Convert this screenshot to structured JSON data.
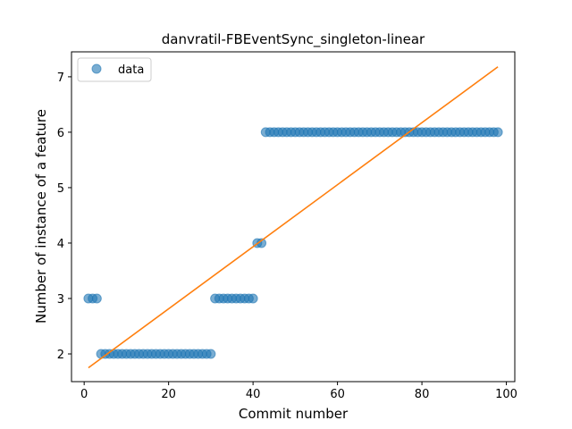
{
  "chart_data": {
    "type": "scatter",
    "title": "danvratil-FBEventSync_singleton-linear",
    "xlabel": "Commit number",
    "ylabel": "Number of instance of a feature",
    "xlim": [
      -3,
      102
    ],
    "ylim": [
      1.5,
      7.45
    ],
    "x_ticks": [
      0,
      20,
      40,
      60,
      80,
      100
    ],
    "y_ticks": [
      2,
      3,
      4,
      5,
      6,
      7
    ],
    "grid": false,
    "legend_position": "top-left",
    "colors": {
      "data": "#1f77b4",
      "fit": "#ff7f0e"
    },
    "series": [
      {
        "name": "data",
        "kind": "points",
        "x": [
          1,
          2,
          3,
          4,
          5,
          6,
          7,
          8,
          9,
          10,
          11,
          12,
          13,
          14,
          15,
          16,
          17,
          18,
          19,
          20,
          21,
          22,
          23,
          24,
          25,
          26,
          27,
          28,
          29,
          30,
          31,
          32,
          33,
          34,
          35,
          36,
          37,
          38,
          39,
          40,
          41,
          42,
          43,
          44,
          45,
          46,
          47,
          48,
          49,
          50,
          51,
          52,
          53,
          54,
          55,
          56,
          57,
          58,
          59,
          60,
          61,
          62,
          63,
          64,
          65,
          66,
          67,
          68,
          69,
          70,
          71,
          72,
          73,
          74,
          75,
          76,
          77,
          78,
          79,
          80,
          81,
          82,
          83,
          84,
          85,
          86,
          87,
          88,
          89,
          90,
          91,
          92,
          93,
          94,
          95,
          96,
          97,
          98
        ],
        "y": [
          3,
          3,
          3,
          2,
          2,
          2,
          2,
          2,
          2,
          2,
          2,
          2,
          2,
          2,
          2,
          2,
          2,
          2,
          2,
          2,
          2,
          2,
          2,
          2,
          2,
          2,
          2,
          2,
          2,
          2,
          3,
          3,
          3,
          3,
          3,
          3,
          3,
          3,
          3,
          3,
          4,
          4,
          6,
          6,
          6,
          6,
          6,
          6,
          6,
          6,
          6,
          6,
          6,
          6,
          6,
          6,
          6,
          6,
          6,
          6,
          6,
          6,
          6,
          6,
          6,
          6,
          6,
          6,
          6,
          6,
          6,
          6,
          6,
          6,
          6,
          6,
          6,
          6,
          6,
          6,
          6,
          6,
          6,
          6,
          6,
          6,
          6,
          6,
          6,
          6,
          6,
          6,
          6,
          6,
          6,
          6,
          6,
          6
        ]
      },
      {
        "kind": "line",
        "x": [
          1,
          98
        ],
        "y": [
          1.75,
          7.18
        ]
      }
    ]
  }
}
